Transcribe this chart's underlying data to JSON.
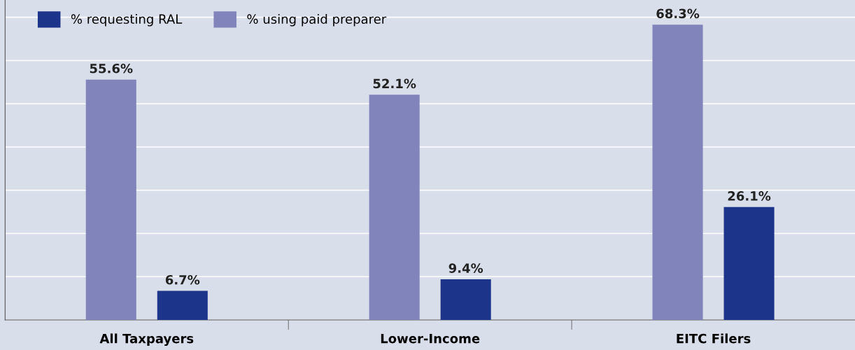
{
  "chart_data": {
    "type": "bar",
    "categories": [
      "All Taxpayers",
      "Lower-Income",
      "EITC Filers"
    ],
    "series": [
      {
        "name": "% using paid preparer",
        "color": "#8084bb",
        "values": [
          55.6,
          52.1,
          68.3
        ],
        "value_labels": [
          "55.6%",
          "52.1%",
          "68.3%"
        ]
      },
      {
        "name": "% requesting RAL",
        "color": "#1c358a",
        "values": [
          6.7,
          9.4,
          26.1
        ],
        "value_labels": [
          "6.7%",
          "9.4%",
          "26.1%"
        ]
      }
    ],
    "ylim": [
      0,
      74
    ],
    "yticks": [
      {
        "value": 0,
        "label": null
      },
      {
        "value": 10,
        "label": null
      },
      {
        "value": 20,
        "label": null
      },
      {
        "value": 30,
        "label": null
      },
      {
        "value": 40,
        "label": null
      },
      {
        "value": 50,
        "label": null
      },
      {
        "value": 60,
        "label": null
      },
      {
        "value": 70,
        "label": null
      }
    ],
    "tick_labels": "x",
    "grid": "y",
    "legend": "top left"
  }
}
